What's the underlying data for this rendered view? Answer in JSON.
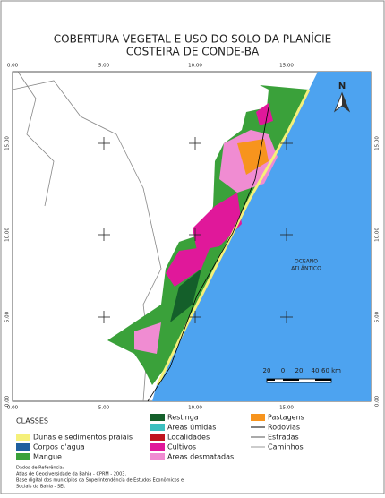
{
  "title": [
    "COBERTURA VEGETAL E USO DO SOLO DA PLANÍCIE",
    "COSTEIRA DE CONDE-BA"
  ],
  "grid_labels": {
    "top": [
      "0.00",
      "5.00",
      "10.00",
      "15.00"
    ],
    "bottom": [
      "0.00",
      "5.00",
      "10.00",
      "15.00"
    ],
    "left": [
      "15.00",
      "10.00",
      "5.00",
      "0.00"
    ],
    "right": [
      "15.00",
      "10.00",
      "5.00",
      "0.00"
    ]
  },
  "ocean_label": [
    "OCEANO",
    "ATLÂNTICO"
  ],
  "north": "N",
  "scale_labels": [
    "20",
    "0",
    "20",
    "40",
    "60 km"
  ],
  "legend": {
    "title": "CLASSES",
    "items": [
      {
        "label": "Dunas e sedimentos praiais",
        "color": "#f5f07a",
        "kind": "area"
      },
      {
        "label": "Corpos d'agua",
        "color": "#1f5f9e",
        "kind": "area"
      },
      {
        "label": "Mangue",
        "color": "#3aa13a",
        "kind": "area"
      },
      {
        "label": "Restinga",
        "color": "#145f2a",
        "kind": "area"
      },
      {
        "label": "Areas úmidas",
        "color": "#3cc0c0",
        "kind": "area"
      },
      {
        "label": "Localidades",
        "color": "#c0141e",
        "kind": "area"
      },
      {
        "label": "Cultivos",
        "color": "#e0189a",
        "kind": "area"
      },
      {
        "label": "Areas desmatadas",
        "color": "#f08cd2",
        "kind": "area"
      },
      {
        "label": "Pastagens",
        "color": "#f7941d",
        "kind": "area"
      },
      {
        "label": "Rodovias",
        "color": "#000000",
        "kind": "line"
      },
      {
        "label": "Estradas",
        "color": "#555555",
        "kind": "line"
      },
      {
        "label": "Caminhos",
        "color": "#999999",
        "kind": "line"
      }
    ]
  },
  "references": [
    "Dados de Referência:",
    "Atlas de Geodiversidade da Bahia - CPRM - 2003.",
    "Base digital dos municípios da Superintendência de Estudos Econômicos e",
    "Sociais da Bahia - SEI."
  ]
}
